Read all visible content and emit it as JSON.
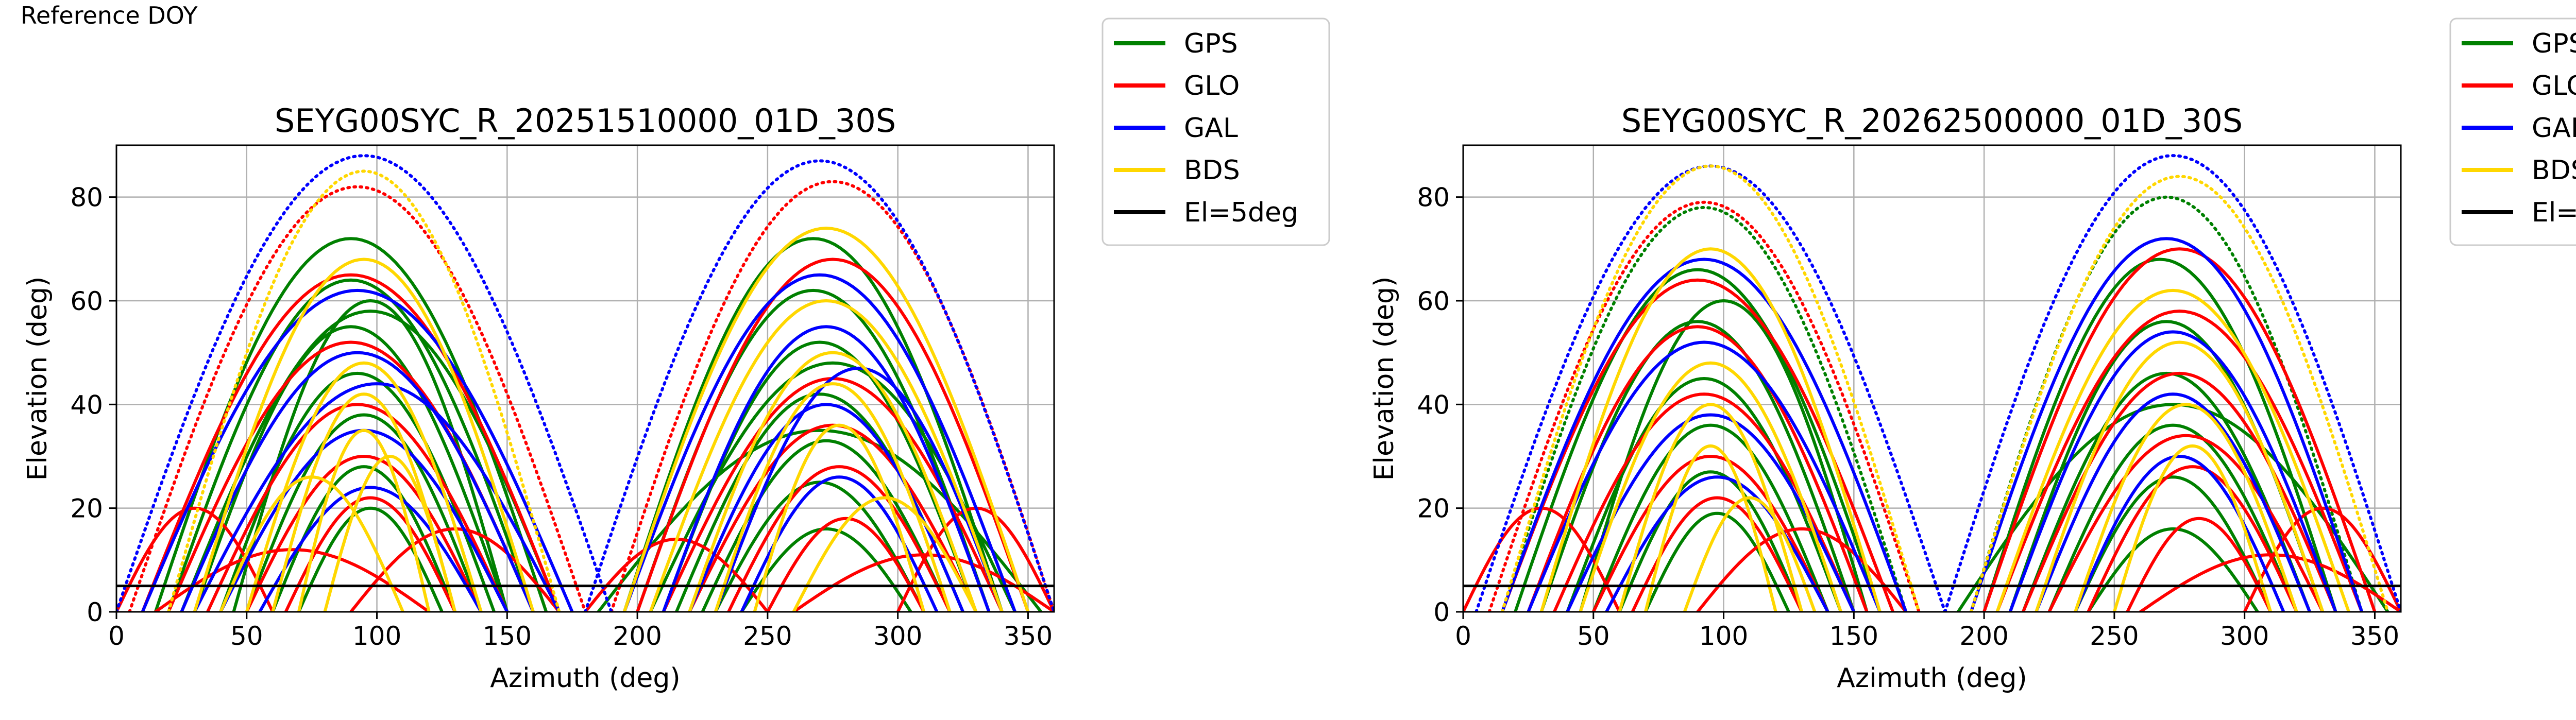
{
  "figure": {
    "header": "Reference DOY"
  },
  "legend_entries": [
    {
      "label": "GPS",
      "color": "#008000"
    },
    {
      "label": "GLO",
      "color": "#ff0000"
    },
    {
      "label": "GAL",
      "color": "#0000ff"
    },
    {
      "label": "BDS",
      "color": "#ffd700"
    },
    {
      "label": "El=5deg",
      "color": "#000000"
    }
  ],
  "chart_data": [
    {
      "type": "scatter",
      "title": "SEYG00SYC_R_20251510000_01D_30S",
      "xlabel": "Azimuth (deg)",
      "ylabel": "Elevation (deg)",
      "xlim": [
        0,
        360
      ],
      "ylim": [
        0,
        90
      ],
      "xticks": [
        0,
        50,
        100,
        150,
        200,
        250,
        300,
        350
      ],
      "yticks": [
        0,
        20,
        40,
        60,
        80
      ],
      "grid": true,
      "legend_position": "outside-upper-right",
      "threshold_line": {
        "name": "El=5deg",
        "y": 5
      },
      "series": [
        {
          "name": "GPS",
          "color": "#008000",
          "arcs": [
            [
              15,
              165,
              72
            ],
            [
              20,
              160,
              64
            ],
            [
              30,
              150,
              55
            ],
            [
              40,
              145,
              46
            ],
            [
              50,
              140,
              38
            ],
            [
              60,
              130,
              28
            ],
            [
              70,
              125,
              20
            ],
            [
              45,
              150,
              60
            ],
            [
              25,
              170,
              58
            ],
            [
              195,
              340,
              72
            ],
            [
              200,
              335,
              62
            ],
            [
              210,
              330,
              52
            ],
            [
              215,
              325,
              42
            ],
            [
              225,
              320,
              33
            ],
            [
              230,
              310,
              25
            ],
            [
              240,
              305,
              16
            ],
            [
              205,
              345,
              48
            ],
            [
              185,
              355,
              35
            ]
          ]
        },
        {
          "name": "GLO",
          "color": "#ff0000",
          "arcs": [
            [
              5,
              180,
              82
            ],
            [
              10,
              170,
              65
            ],
            [
              20,
              160,
              52
            ],
            [
              35,
              150,
              40
            ],
            [
              50,
              140,
              30
            ],
            [
              65,
              130,
              22
            ],
            [
              0,
              60,
              20
            ],
            [
              90,
              170,
              16
            ],
            [
              15,
              120,
              12
            ],
            [
              190,
              360,
              83
            ],
            [
              200,
              350,
              68
            ],
            [
              210,
              340,
              45
            ],
            [
              220,
              330,
              36
            ],
            [
              235,
              320,
              28
            ],
            [
              250,
              310,
              18
            ],
            [
              300,
              360,
              20
            ],
            [
              180,
              250,
              14
            ],
            [
              260,
              360,
              11
            ]
          ]
        },
        {
          "name": "GAL",
          "color": "#0000ff",
          "arcs": [
            [
              0,
              190,
              88
            ],
            [
              10,
              175,
              62
            ],
            [
              25,
              160,
              50
            ],
            [
              40,
              150,
              35
            ],
            [
              55,
              140,
              24
            ],
            [
              30,
              170,
              44
            ],
            [
              180,
              360,
              87
            ],
            [
              195,
              345,
              65
            ],
            [
              210,
              335,
              55
            ],
            [
              220,
              325,
              40
            ],
            [
              240,
              315,
              26
            ],
            [
              230,
              340,
              47
            ]
          ]
        },
        {
          "name": "BDS",
          "color": "#ffd700",
          "arcs": [
            [
              20,
              170,
              85
            ],
            [
              30,
              160,
              68
            ],
            [
              50,
              140,
              48
            ],
            [
              60,
              130,
              42
            ],
            [
              70,
              120,
              35
            ],
            [
              80,
              130,
              30
            ],
            [
              40,
              110,
              26
            ],
            [
              195,
              350,
              74
            ],
            [
              205,
              340,
              60
            ],
            [
              220,
              330,
              50
            ],
            [
              230,
              320,
              44
            ],
            [
              245,
              310,
              36
            ],
            [
              260,
              330,
              22
            ]
          ]
        }
      ]
    },
    {
      "type": "scatter",
      "title": "SEYG00SYC_R_20262500000_01D_30S",
      "xlabel": "Azimuth (deg)",
      "ylabel": "Elevation (deg)",
      "xlim": [
        0,
        360
      ],
      "ylim": [
        0,
        90
      ],
      "xticks": [
        0,
        50,
        100,
        150,
        200,
        250,
        300,
        350
      ],
      "yticks": [
        0,
        20,
        40,
        60,
        80
      ],
      "grid": true,
      "legend_position": "outside-upper-right",
      "threshold_line": {
        "name": "El=5deg",
        "y": 5
      },
      "series": [
        {
          "name": "GPS",
          "color": "#008000",
          "arcs": [
            [
              15,
              170,
              78
            ],
            [
              20,
              160,
              66
            ],
            [
              30,
              150,
              56
            ],
            [
              40,
              145,
              45
            ],
            [
              50,
              140,
              36
            ],
            [
              60,
              130,
              27
            ],
            [
              70,
              125,
              19
            ],
            [
              45,
              155,
              60
            ],
            [
              195,
              345,
              80
            ],
            [
              200,
              335,
              68
            ],
            [
              210,
              330,
              56
            ],
            [
              215,
              325,
              46
            ],
            [
              225,
              320,
              36
            ],
            [
              235,
              310,
              26
            ],
            [
              240,
              305,
              16
            ],
            [
              190,
              355,
              40
            ]
          ]
        },
        {
          "name": "GLO",
          "color": "#ff0000",
          "arcs": [
            [
              10,
              175,
              79
            ],
            [
              15,
              165,
              64
            ],
            [
              25,
              155,
              55
            ],
            [
              35,
              150,
              42
            ],
            [
              50,
              140,
              30
            ],
            [
              65,
              130,
              22
            ],
            [
              0,
              60,
              20
            ],
            [
              90,
              170,
              16
            ],
            [
              200,
              350,
              70
            ],
            [
              205,
              345,
              58
            ],
            [
              215,
              335,
              46
            ],
            [
              225,
              330,
              34
            ],
            [
              240,
              320,
              28
            ],
            [
              255,
              310,
              18
            ],
            [
              300,
              360,
              20
            ],
            [
              260,
              360,
              11
            ]
          ]
        },
        {
          "name": "GAL",
          "color": "#0000ff",
          "arcs": [
            [
              5,
              185,
              86
            ],
            [
              15,
              170,
              68
            ],
            [
              25,
              160,
              52
            ],
            [
              40,
              150,
              38
            ],
            [
              55,
              140,
              26
            ],
            [
              185,
              360,
              88
            ],
            [
              195,
              345,
              72
            ],
            [
              210,
              335,
              54
            ],
            [
              220,
              325,
              42
            ],
            [
              235,
              315,
              30
            ]
          ]
        },
        {
          "name": "BDS",
          "color": "#ffd700",
          "arcs": [
            [
              15,
              175,
              86
            ],
            [
              30,
              160,
              70
            ],
            [
              45,
              145,
              48
            ],
            [
              60,
              130,
              40
            ],
            [
              70,
              120,
              32
            ],
            [
              85,
              135,
              22
            ],
            [
              195,
              355,
              84
            ],
            [
              205,
              340,
              62
            ],
            [
              220,
              330,
              52
            ],
            [
              235,
              320,
              40
            ],
            [
              250,
              310,
              32
            ]
          ]
        }
      ]
    }
  ]
}
